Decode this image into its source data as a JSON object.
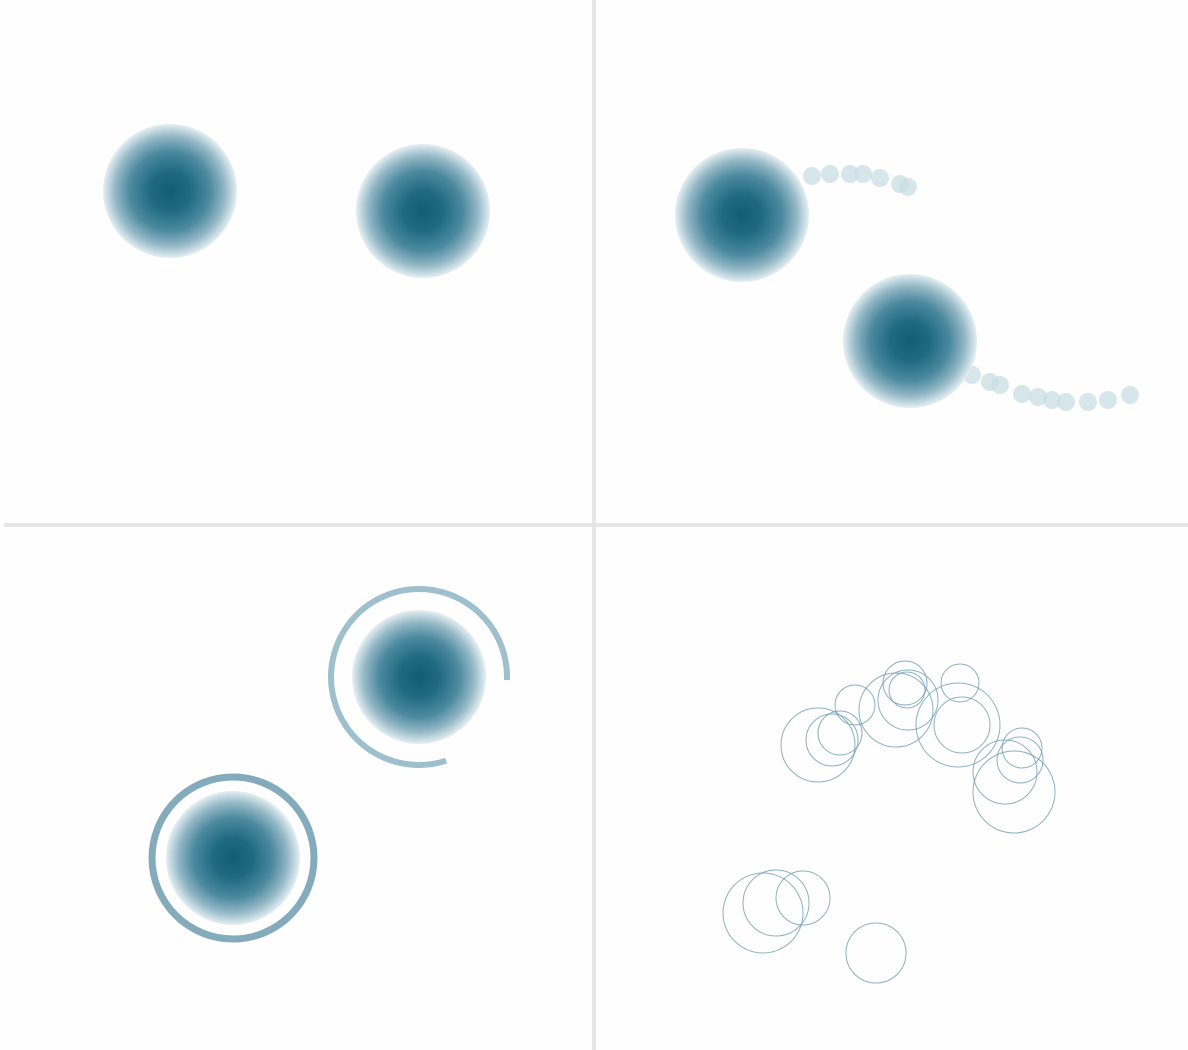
{
  "colors": {
    "background": "#fefefe",
    "divider": "#e6e6e6",
    "blob_core": "#135b74",
    "blob_edge": "#dfe9ed",
    "trail": "#c9dde4",
    "ring_outline": "#6f9eb0",
    "ring_partial": "#9ec0cd",
    "ring_full": "#84abbb"
  },
  "panels": [
    {
      "id": "top-left",
      "content": "two-static-blobs"
    },
    {
      "id": "top-right",
      "content": "two-blobs-with-trails"
    },
    {
      "id": "bottom-left",
      "content": "two-blobs-with-progress-rings"
    },
    {
      "id": "bottom-right",
      "content": "outline-circles"
    }
  ],
  "rings": [
    {
      "name": "partial-ring",
      "progress": 0.75
    },
    {
      "name": "full-ring",
      "progress": 1.0
    }
  ]
}
